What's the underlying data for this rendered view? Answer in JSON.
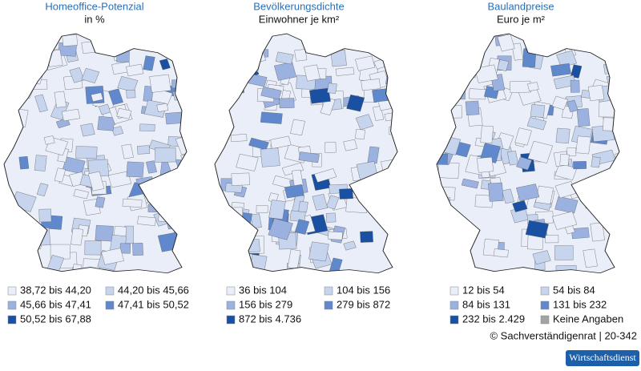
{
  "panels": [
    {
      "title": "Homeoffice-Potenzial",
      "subtitle": "in %",
      "legend": [
        {
          "label": "38,72 bis 44,20",
          "color": "#e9eef8"
        },
        {
          "label": "44,20 bis 45,66",
          "color": "#c6d4ee"
        },
        {
          "label": "45,66 bis 47,41",
          "color": "#9bb2e0"
        },
        {
          "label": "47,41 bis 50,52",
          "color": "#6089cd"
        },
        {
          "label": "50,52 bis 67,88",
          "color": "#1a50a2"
        }
      ]
    },
    {
      "title": "Bevölkerungsdichte",
      "subtitle": "Einwohner je km²",
      "legend": [
        {
          "label": "36 bis 104",
          "color": "#e9eef8"
        },
        {
          "label": "104 bis 156",
          "color": "#c6d4ee"
        },
        {
          "label": "156 bis 279",
          "color": "#9bb2e0"
        },
        {
          "label": "279 bis 872",
          "color": "#6089cd"
        },
        {
          "label": "872 bis 4.736",
          "color": "#1a50a2"
        }
      ]
    },
    {
      "title": "Baulandpreise",
      "subtitle": "Euro je m²",
      "legend": [
        {
          "label": "12 bis 54",
          "color": "#e9eef8"
        },
        {
          "label": "54 bis 84",
          "color": "#c6d4ee"
        },
        {
          "label": "84 bis 131",
          "color": "#9bb2e0"
        },
        {
          "label": "131 bis 232",
          "color": "#6089cd"
        },
        {
          "label": "232 bis 2.429",
          "color": "#1a50a2"
        },
        {
          "label": "Keine Angaben",
          "color": "#a3a3a3"
        }
      ]
    }
  ],
  "source": "© Sachverständigenrat | 20-342",
  "publisher": "Wirtschaftsdienst"
}
